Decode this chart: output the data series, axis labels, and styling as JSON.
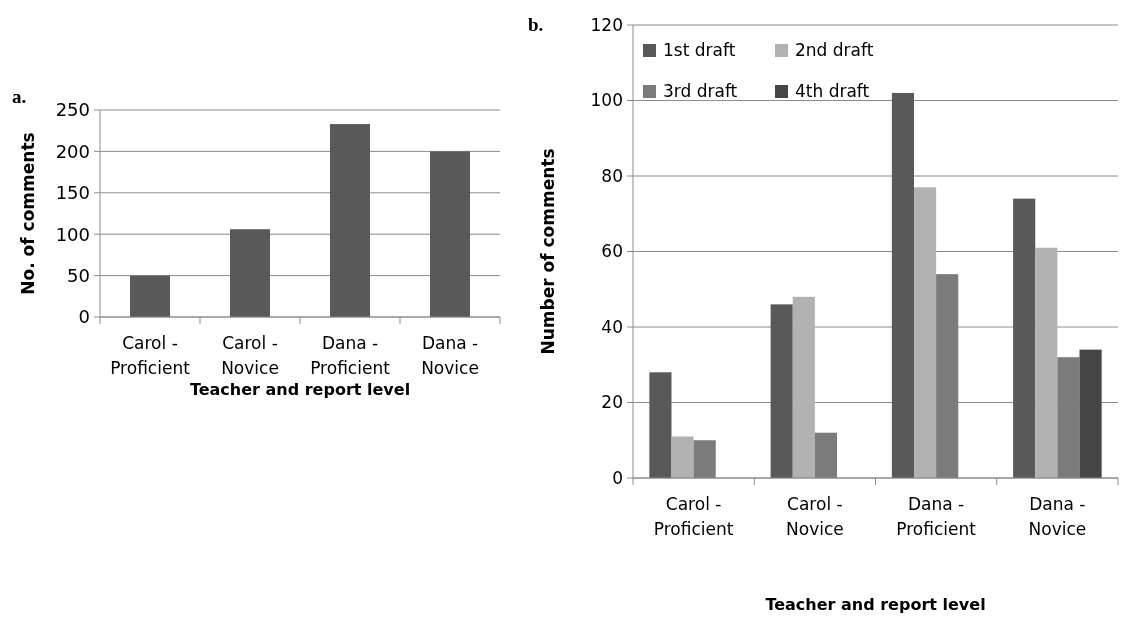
{
  "chart_data": [
    {
      "type": "bar",
      "title": "a.",
      "xlabel": "Teacher and report level",
      "ylabel": "No. of comments",
      "categories": [
        "Carol - Proficient",
        "Carol - Novice",
        "Dana - Proficient",
        "Dana - Novice"
      ],
      "values": [
        50,
        106,
        233,
        200
      ],
      "color": "#595959",
      "ylim": [
        0,
        250
      ],
      "yticks": [
        0,
        50,
        100,
        150,
        200,
        250
      ],
      "grid": "y",
      "legend": false
    },
    {
      "type": "bar",
      "title": "b.",
      "xlabel": "Teacher and report level",
      "ylabel": "Number of comments",
      "categories": [
        "Carol - Proficient",
        "Carol - Novice",
        "Dana - Proficient",
        "Dana - Novice"
      ],
      "series": [
        {
          "name": "1st draft",
          "color": "#595959",
          "values": [
            28,
            46,
            102,
            74
          ]
        },
        {
          "name": "2nd draft",
          "color": "#b2b2b2",
          "values": [
            11,
            48,
            77,
            61
          ]
        },
        {
          "name": "3rd draft",
          "color": "#7a7b7a",
          "values": [
            10,
            12,
            54,
            32
          ]
        },
        {
          "name": "4th draft",
          "color": "#454545",
          "values": [
            null,
            null,
            null,
            34
          ]
        }
      ],
      "ylim": [
        0,
        120
      ],
      "yticks": [
        0,
        20,
        40,
        60,
        80,
        100,
        120
      ],
      "grid": "y",
      "legend": "top left"
    }
  ]
}
